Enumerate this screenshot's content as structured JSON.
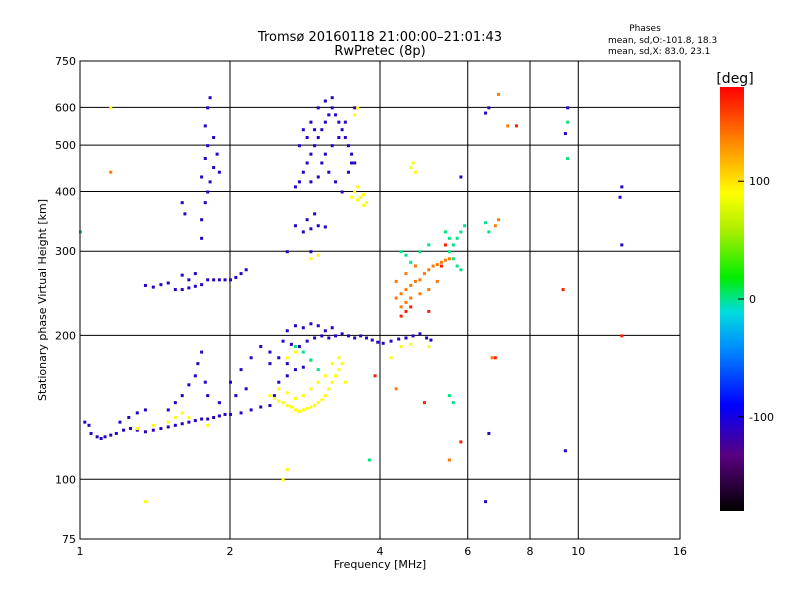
{
  "chart_data": {
    "type": "scatter",
    "title": "Tromsø 20160118 21:00:00–21:01:43",
    "subtitle": "RwPretec (8p)",
    "info": {
      "heading": "Phases",
      "line1": "mean, sd,O:-101.8, 18.3",
      "line2": "mean, sd,X:  83.0, 23.1"
    },
    "xlabel": "Frequency [MHz]",
    "ylabel": "Stationary phase Virtual Height [km]",
    "xscale": "log",
    "yscale": "log",
    "xlim": [
      1,
      16
    ],
    "ylim": [
      75,
      750
    ],
    "xticks": [
      1,
      2,
      4,
      6,
      8,
      10,
      16
    ],
    "yticks": [
      75,
      100,
      200,
      300,
      400,
      500,
      600,
      750
    ],
    "grid_x": [
      2,
      4,
      6,
      8,
      10
    ],
    "grid_y": [
      100,
      200,
      300,
      400,
      500,
      600
    ],
    "colorbar": {
      "label": "[deg]",
      "range": [
        -180,
        180
      ],
      "ticks": [
        100,
        0,
        -100
      ]
    },
    "legend": "none",
    "series": [
      {
        "phase": -110,
        "points": [
          [
            1.05,
            125
          ],
          [
            1.08,
            123
          ],
          [
            1.1,
            122
          ],
          [
            1.12,
            123
          ],
          [
            1.15,
            124
          ],
          [
            1.18,
            125
          ],
          [
            1.22,
            127
          ],
          [
            1.26,
            128
          ],
          [
            1.3,
            127
          ],
          [
            1.35,
            126
          ],
          [
            1.4,
            127
          ],
          [
            1.45,
            128
          ],
          [
            1.5,
            129
          ],
          [
            1.55,
            130
          ],
          [
            1.6,
            131
          ],
          [
            1.65,
            132
          ],
          [
            1.7,
            133
          ],
          [
            1.75,
            134
          ],
          [
            1.8,
            134
          ],
          [
            1.85,
            135
          ],
          [
            1.9,
            136
          ],
          [
            1.95,
            137
          ],
          [
            2.0,
            137
          ],
          [
            2.1,
            138
          ],
          [
            2.2,
            140
          ],
          [
            2.3,
            142
          ],
          [
            2.4,
            143
          ],
          [
            1.02,
            132
          ],
          [
            1.04,
            130
          ],
          [
            1.2,
            132
          ],
          [
            1.25,
            135
          ],
          [
            1.3,
            138
          ],
          [
            1.35,
            140
          ],
          [
            1.5,
            140
          ],
          [
            1.55,
            145
          ],
          [
            1.6,
            150
          ],
          [
            1.65,
            158
          ],
          [
            1.7,
            165
          ],
          [
            1.72,
            175
          ],
          [
            1.75,
            185
          ],
          [
            1.78,
            160
          ],
          [
            1.8,
            150
          ],
          [
            1.9,
            145
          ],
          [
            2.0,
            160
          ],
          [
            2.05,
            150
          ],
          [
            2.1,
            170
          ],
          [
            2.15,
            155
          ],
          [
            2.2,
            180
          ],
          [
            2.3,
            190
          ],
          [
            2.4,
            175
          ],
          [
            1.35,
            255
          ],
          [
            1.4,
            253
          ],
          [
            1.45,
            256
          ],
          [
            1.5,
            258
          ],
          [
            1.55,
            250
          ],
          [
            1.6,
            250
          ],
          [
            1.65,
            252
          ],
          [
            1.7,
            254
          ],
          [
            1.75,
            256
          ],
          [
            1.8,
            262
          ],
          [
            1.85,
            262
          ],
          [
            1.9,
            262
          ],
          [
            1.95,
            262
          ],
          [
            2.0,
            262
          ],
          [
            2.05,
            265
          ],
          [
            2.1,
            270
          ],
          [
            2.15,
            275
          ],
          [
            1.6,
            268
          ],
          [
            1.7,
            270
          ],
          [
            1.65,
            262
          ],
          [
            1.75,
            320
          ],
          [
            1.75,
            350
          ],
          [
            1.78,
            380
          ],
          [
            1.8,
            400
          ],
          [
            1.82,
            420
          ],
          [
            1.85,
            450
          ],
          [
            1.8,
            500
          ],
          [
            1.78,
            550
          ],
          [
            1.8,
            600
          ],
          [
            1.82,
            630
          ],
          [
            1.85,
            520
          ],
          [
            1.88,
            480
          ],
          [
            1.9,
            440
          ],
          [
            1.78,
            470
          ],
          [
            1.75,
            430
          ],
          [
            1.6,
            380
          ],
          [
            1.62,
            360
          ],
          [
            2.55,
            195
          ],
          [
            2.65,
            192
          ],
          [
            2.75,
            190
          ],
          [
            2.85,
            195
          ],
          [
            2.95,
            198
          ],
          [
            3.05,
            200
          ],
          [
            3.15,
            198
          ],
          [
            3.25,
            200
          ],
          [
            3.35,
            202
          ],
          [
            3.45,
            200
          ],
          [
            3.55,
            198
          ],
          [
            3.65,
            200
          ],
          [
            3.75,
            198
          ],
          [
            3.85,
            196
          ],
          [
            3.95,
            194
          ],
          [
            4.05,
            193
          ],
          [
            4.2,
            195
          ],
          [
            4.35,
            197
          ],
          [
            4.5,
            198
          ],
          [
            4.65,
            200
          ],
          [
            4.8,
            202
          ],
          [
            4.95,
            198
          ],
          [
            5.05,
            196
          ],
          [
            2.6,
            205
          ],
          [
            2.7,
            210
          ],
          [
            2.8,
            208
          ],
          [
            2.9,
            212
          ],
          [
            3.0,
            210
          ],
          [
            3.1,
            205
          ],
          [
            3.2,
            208
          ],
          [
            2.4,
            185
          ],
          [
            2.5,
            180
          ],
          [
            2.6,
            175
          ],
          [
            2.7,
            170
          ],
          [
            2.8,
            172
          ],
          [
            2.9,
            178
          ],
          [
            2.5,
            160
          ],
          [
            2.45,
            150
          ],
          [
            2.6,
            165
          ],
          [
            2.7,
            410
          ],
          [
            2.75,
            420
          ],
          [
            2.8,
            440
          ],
          [
            2.85,
            460
          ],
          [
            2.9,
            480
          ],
          [
            2.95,
            500
          ],
          [
            3.0,
            520
          ],
          [
            3.05,
            540
          ],
          [
            3.1,
            560
          ],
          [
            3.15,
            580
          ],
          [
            3.2,
            600
          ],
          [
            3.25,
            580
          ],
          [
            3.3,
            560
          ],
          [
            3.35,
            540
          ],
          [
            3.4,
            520
          ],
          [
            3.45,
            500
          ],
          [
            3.5,
            480
          ],
          [
            3.55,
            460
          ],
          [
            2.8,
            540
          ],
          [
            2.9,
            560
          ],
          [
            3.0,
            600
          ],
          [
            3.1,
            620
          ],
          [
            3.2,
            630
          ],
          [
            2.75,
            500
          ],
          [
            2.85,
            520
          ],
          [
            2.95,
            540
          ],
          [
            3.05,
            460
          ],
          [
            3.15,
            440
          ],
          [
            3.25,
            420
          ],
          [
            3.35,
            400
          ],
          [
            3.45,
            440
          ],
          [
            3.5,
            460
          ],
          [
            2.9,
            420
          ],
          [
            3.0,
            430
          ],
          [
            3.1,
            480
          ],
          [
            3.2,
            500
          ],
          [
            3.3,
            520
          ],
          [
            3.4,
            560
          ],
          [
            3.55,
            600
          ],
          [
            2.8,
            330
          ],
          [
            2.9,
            335
          ],
          [
            3.0,
            340
          ],
          [
            3.1,
            338
          ],
          [
            2.85,
            350
          ],
          [
            2.95,
            360
          ],
          [
            2.9,
            300
          ],
          [
            2.7,
            340
          ],
          [
            2.6,
            300
          ],
          [
            9.5,
            600
          ],
          [
            9.4,
            530
          ],
          [
            12.2,
            410
          ],
          [
            12.1,
            390
          ],
          [
            12.2,
            310
          ],
          [
            6.5,
            585
          ],
          [
            6.6,
            600
          ],
          [
            6.6,
            125
          ],
          [
            6.5,
            90
          ],
          [
            9.4,
            115
          ],
          [
            5.8,
            430
          ]
        ]
      },
      {
        "phase": 90,
        "points": [
          [
            2.4,
            150
          ],
          [
            2.45,
            148
          ],
          [
            2.5,
            146
          ],
          [
            2.55,
            145
          ],
          [
            2.6,
            143
          ],
          [
            2.65,
            142
          ],
          [
            2.7,
            140
          ],
          [
            2.75,
            139
          ],
          [
            2.8,
            140
          ],
          [
            2.85,
            141
          ],
          [
            2.9,
            142
          ],
          [
            2.95,
            143
          ],
          [
            3.0,
            145
          ],
          [
            3.05,
            147
          ],
          [
            3.1,
            150
          ],
          [
            3.15,
            155
          ],
          [
            3.2,
            160
          ],
          [
            3.25,
            165
          ],
          [
            3.3,
            170
          ],
          [
            3.35,
            175
          ],
          [
            3.1,
            165
          ],
          [
            3.0,
            160
          ],
          [
            2.9,
            155
          ],
          [
            2.8,
            150
          ],
          [
            2.7,
            148
          ],
          [
            2.6,
            152
          ],
          [
            2.5,
            155
          ],
          [
            3.2,
            175
          ],
          [
            3.3,
            180
          ],
          [
            3.4,
            160
          ],
          [
            1.5,
            132
          ],
          [
            1.55,
            135
          ],
          [
            1.6,
            138
          ],
          [
            1.65,
            135
          ],
          [
            1.3,
            128
          ],
          [
            1.4,
            130
          ],
          [
            1.8,
            130
          ],
          [
            3.6,
            385
          ],
          [
            3.65,
            390
          ],
          [
            3.7,
            395
          ],
          [
            3.75,
            380
          ],
          [
            3.55,
            400
          ],
          [
            3.6,
            410
          ],
          [
            3.7,
            375
          ],
          [
            3.5,
            390
          ],
          [
            4.6,
            450
          ],
          [
            4.65,
            460
          ],
          [
            4.7,
            440
          ],
          [
            3.55,
            580
          ],
          [
            3.6,
            600
          ],
          [
            2.9,
            290
          ],
          [
            3.0,
            295
          ],
          [
            2.6,
            180
          ],
          [
            2.7,
            185
          ],
          [
            1.15,
            600
          ],
          [
            1.35,
            90
          ],
          [
            2.6,
            105
          ],
          [
            2.55,
            100
          ],
          [
            4.4,
            190
          ],
          [
            4.6,
            192
          ],
          [
            5.0,
            190
          ],
          [
            4.2,
            180
          ]
        ]
      },
      {
        "phase": 140,
        "points": [
          [
            4.3,
            240
          ],
          [
            4.4,
            245
          ],
          [
            4.5,
            250
          ],
          [
            4.6,
            255
          ],
          [
            4.7,
            260
          ],
          [
            4.8,
            262
          ],
          [
            4.9,
            270
          ],
          [
            5.0,
            275
          ],
          [
            5.1,
            280
          ],
          [
            5.2,
            282
          ],
          [
            5.3,
            285
          ],
          [
            5.4,
            288
          ],
          [
            5.5,
            290
          ],
          [
            4.4,
            230
          ],
          [
            4.5,
            235
          ],
          [
            4.6,
            240
          ],
          [
            4.8,
            245
          ],
          [
            5.0,
            250
          ],
          [
            5.2,
            260
          ],
          [
            4.3,
            260
          ],
          [
            4.5,
            270
          ],
          [
            4.7,
            280
          ],
          [
            6.8,
            340
          ],
          [
            6.9,
            350
          ],
          [
            7.2,
            550
          ],
          [
            6.9,
            640
          ],
          [
            6.7,
            180
          ],
          [
            5.5,
            110
          ],
          [
            4.3,
            155
          ],
          [
            1.15,
            440
          ]
        ]
      },
      {
        "phase": 0,
        "points": [
          [
            5.5,
            300
          ],
          [
            5.6,
            310
          ],
          [
            5.7,
            320
          ],
          [
            5.8,
            330
          ],
          [
            5.9,
            340
          ],
          [
            5.6,
            290
          ],
          [
            5.7,
            280
          ],
          [
            5.8,
            275
          ],
          [
            5.4,
            330
          ],
          [
            5.5,
            320
          ],
          [
            4.4,
            300
          ],
          [
            4.5,
            295
          ],
          [
            4.6,
            285
          ],
          [
            4.8,
            300
          ],
          [
            5.0,
            310
          ],
          [
            5.5,
            150
          ],
          [
            5.6,
            145
          ],
          [
            6.5,
            345
          ],
          [
            6.6,
            330
          ],
          [
            9.5,
            560
          ],
          [
            9.5,
            470
          ],
          [
            2.7,
            190
          ],
          [
            2.8,
            185
          ],
          [
            2.9,
            178
          ],
          [
            3.0,
            170
          ],
          [
            3.8,
            110
          ],
          [
            1.0,
            330
          ]
        ]
      },
      {
        "phase": 170,
        "points": [
          [
            4.4,
            220
          ],
          [
            4.5,
            225
          ],
          [
            4.6,
            230
          ],
          [
            5.0,
            225
          ],
          [
            5.3,
            280
          ],
          [
            5.4,
            310
          ],
          [
            7.5,
            550
          ],
          [
            9.3,
            250
          ],
          [
            12.2,
            200
          ],
          [
            6.8,
            180
          ],
          [
            3.9,
            165
          ],
          [
            4.9,
            145
          ],
          [
            5.8,
            120
          ]
        ]
      }
    ]
  }
}
